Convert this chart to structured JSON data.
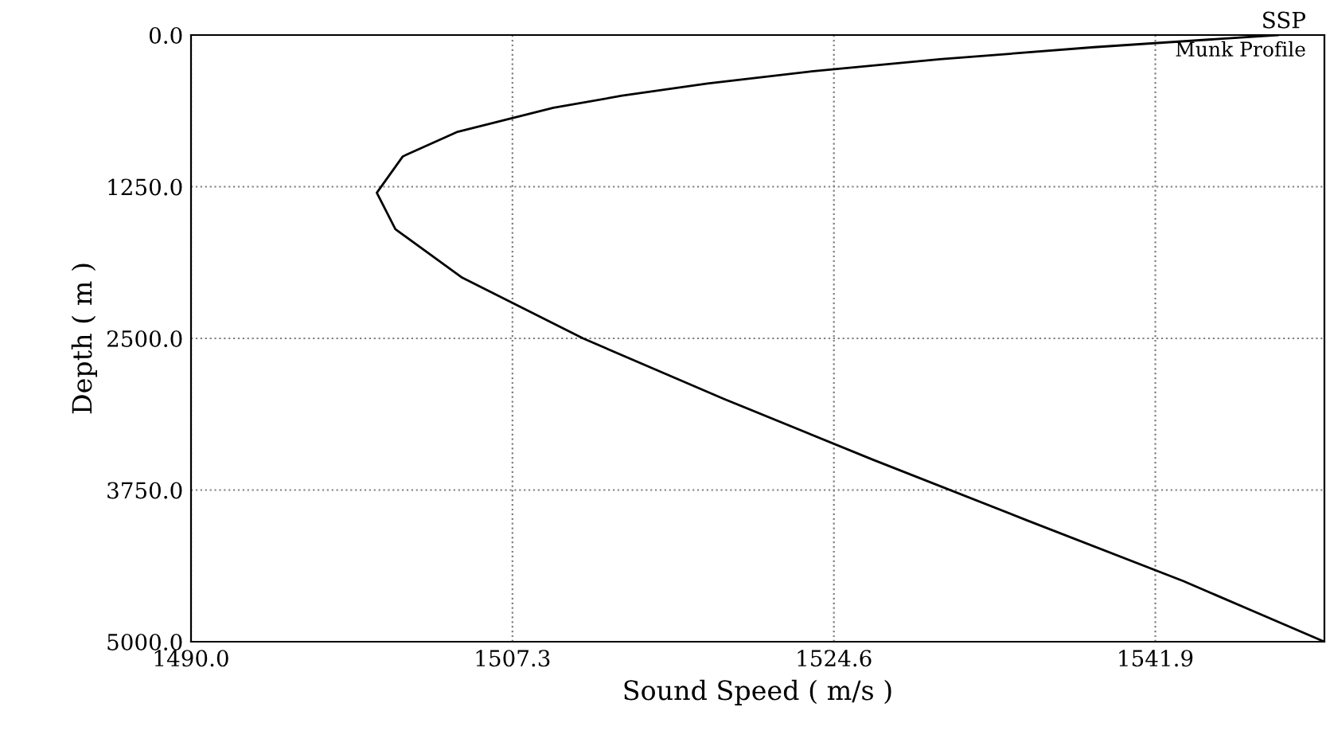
{
  "chart_data": {
    "type": "line",
    "title": "SSP",
    "subtitle": "Munk Profile",
    "xlabel": "Sound Speed ( m/s )",
    "ylabel": "Depth ( m )",
    "x": [
      1548.5,
      1538.6,
      1530.3,
      1523.4,
      1517.8,
      1513.2,
      1509.5,
      1504.3,
      1501.4,
      1500.0,
      1501.0,
      1504.6,
      1511.1,
      1518.7,
      1526.7,
      1535.0,
      1543.4,
      1551.0
    ],
    "values": [
      0,
      100,
      200,
      300,
      400,
      500,
      600,
      800,
      1000,
      1300,
      1600,
      2000,
      2500,
      3000,
      3500,
      4000,
      4500,
      5000
    ],
    "color": "#000000",
    "xlim": [
      1490.0,
      1551.0
    ],
    "ylim": [
      5000,
      0
    ],
    "xticks": [
      {
        "value": 1490.0,
        "label": "1490.0"
      },
      {
        "value": 1507.3,
        "label": "1507.3"
      },
      {
        "value": 1524.6,
        "label": "1524.6"
      },
      {
        "value": 1541.9,
        "label": "1541.9"
      }
    ],
    "yticks": [
      {
        "value": 0,
        "label": "0.0"
      },
      {
        "value": 1250,
        "label": "1250.0"
      },
      {
        "value": 2500,
        "label": "2500.0"
      },
      {
        "value": 3750,
        "label": "3750.0"
      },
      {
        "value": 5000,
        "label": "5000.0"
      }
    ],
    "grid": true,
    "line_style": "solid"
  }
}
